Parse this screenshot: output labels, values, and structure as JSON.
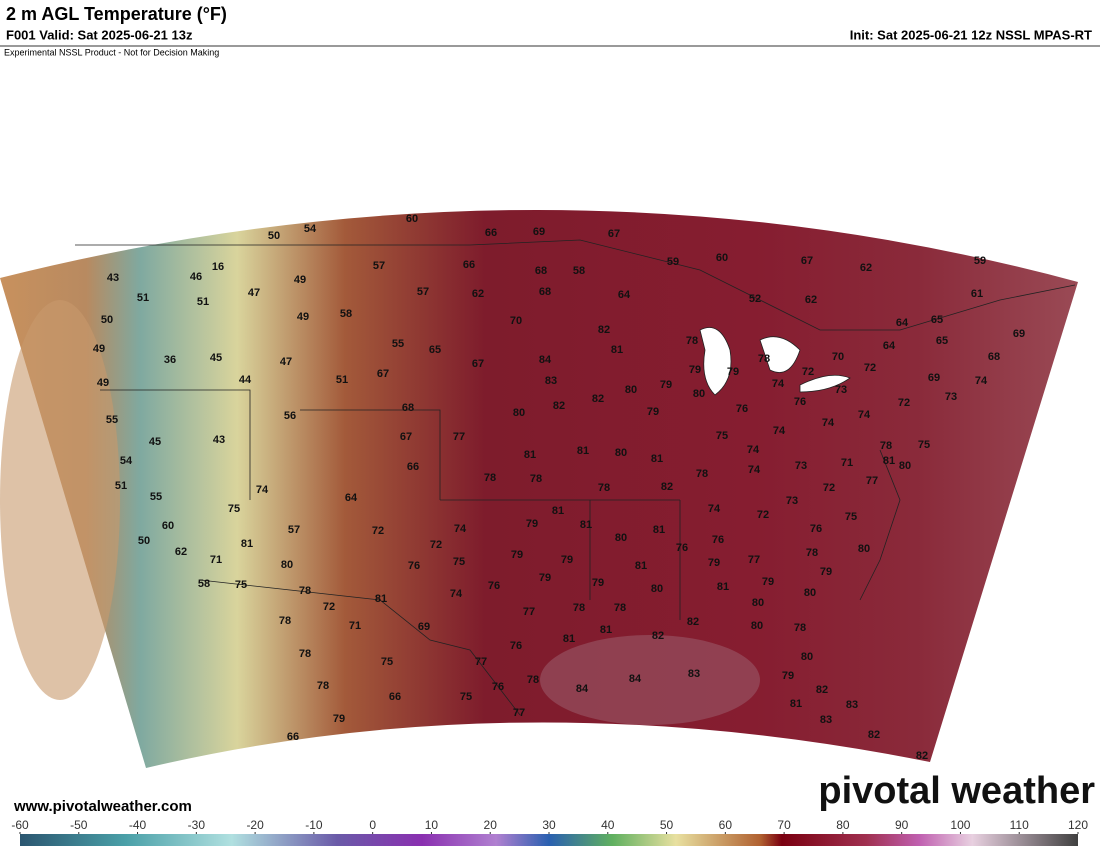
{
  "header": {
    "title": "2 m AGL Temperature (°F)",
    "valid": "F001 Valid: Sat 2025-06-21 13z",
    "init": "Init: Sat 2025-06-21 12z NSSL MPAS-RT",
    "disclaimer": "Experimental NSSL Product - Not for Decision Making"
  },
  "map": {
    "labels": [
      "60",
      "66",
      "69",
      "67",
      "50",
      "54",
      "43",
      "46",
      "16",
      "49",
      "57",
      "66",
      "68",
      "58",
      "59",
      "60",
      "67",
      "62",
      "59",
      "51",
      "51",
      "47",
      "57",
      "62",
      "68",
      "64",
      "52",
      "62",
      "61",
      "50",
      "49",
      "58",
      "70",
      "82",
      "64",
      "65",
      "49",
      "36",
      "45",
      "47",
      "55",
      "65",
      "67",
      "84",
      "81",
      "78",
      "65",
      "69",
      "64",
      "49",
      "44",
      "51",
      "67",
      "83",
      "79",
      "79",
      "78",
      "72",
      "74",
      "70",
      "72",
      "68",
      "69",
      "74",
      "68",
      "56",
      "80",
      "82",
      "82",
      "80",
      "79",
      "80",
      "76",
      "76",
      "73",
      "73",
      "72",
      "55",
      "45",
      "43",
      "67",
      "77",
      "79",
      "75",
      "74",
      "74",
      "74",
      "75",
      "78",
      "81",
      "80",
      "54",
      "66",
      "81",
      "81",
      "80",
      "81",
      "74",
      "73",
      "71",
      "78",
      "51",
      "74",
      "64",
      "78",
      "78",
      "78",
      "82",
      "74",
      "77",
      "72",
      "55",
      "75",
      "81",
      "74",
      "73",
      "72",
      "75",
      "60",
      "57",
      "72",
      "74",
      "79",
      "81",
      "81",
      "76",
      "50",
      "62",
      "81",
      "72",
      "79",
      "79",
      "80",
      "76",
      "76",
      "77",
      "78",
      "80",
      "71",
      "80",
      "76",
      "75",
      "79",
      "79",
      "79",
      "79",
      "81",
      "58",
      "75",
      "78",
      "76",
      "79",
      "80",
      "81",
      "80",
      "81",
      "72",
      "74",
      "77",
      "78",
      "78",
      "80",
      "78",
      "71",
      "69",
      "82",
      "80",
      "78",
      "81",
      "81",
      "82",
      "76",
      "78",
      "75",
      "77",
      "80",
      "78",
      "66",
      "75",
      "76",
      "78",
      "84",
      "84",
      "83",
      "79",
      "82",
      "81",
      "83",
      "83",
      "79",
      "77",
      "66",
      "82",
      "82"
    ]
  },
  "colorbar": {
    "ticks": [
      -60,
      -50,
      -40,
      -30,
      -20,
      -10,
      0,
      10,
      20,
      30,
      40,
      50,
      60,
      70,
      80,
      90,
      100,
      110,
      120
    ],
    "lim": [
      -60,
      120
    ]
  },
  "footer": {
    "url": "www.pivotalweather.com",
    "logo": "pivotal weather"
  }
}
